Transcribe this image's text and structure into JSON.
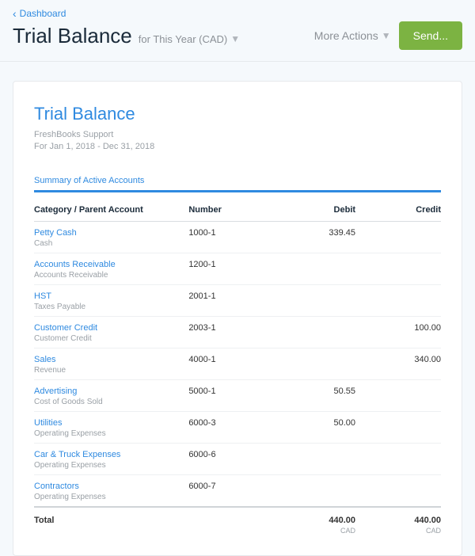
{
  "nav": {
    "back_label": "Dashboard",
    "page_title": "Trial Balance",
    "period_label": "for This Year (CAD)",
    "more_actions_label": "More Actions",
    "send_label": "Send..."
  },
  "report": {
    "title": "Trial Balance",
    "org": "FreshBooks Support",
    "date_range": "For Jan 1, 2018 - Dec 31, 2018",
    "summary_label": "Summary of Active Accounts",
    "columns": {
      "category": "Category / Parent Account",
      "number": "Number",
      "debit": "Debit",
      "credit": "Credit"
    },
    "rows": [
      {
        "name": "Petty Cash",
        "parent": "Cash",
        "number": "1000-1",
        "debit": "339.45",
        "credit": ""
      },
      {
        "name": "Accounts Receivable",
        "parent": "Accounts Receivable",
        "number": "1200-1",
        "debit": "",
        "credit": ""
      },
      {
        "name": "HST",
        "parent": "Taxes Payable",
        "number": "2001-1",
        "debit": "",
        "credit": ""
      },
      {
        "name": "Customer Credit",
        "parent": "Customer Credit",
        "number": "2003-1",
        "debit": "",
        "credit": "100.00"
      },
      {
        "name": "Sales",
        "parent": "Revenue",
        "number": "4000-1",
        "debit": "",
        "credit": "340.00"
      },
      {
        "name": "Advertising",
        "parent": "Cost of Goods Sold",
        "number": "5000-1",
        "debit": "50.55",
        "credit": ""
      },
      {
        "name": "Utilities",
        "parent": "Operating Expenses",
        "number": "6000-3",
        "debit": "50.00",
        "credit": ""
      },
      {
        "name": "Car & Truck Expenses",
        "parent": "Operating Expenses",
        "number": "6000-6",
        "debit": "",
        "credit": ""
      },
      {
        "name": "Contractors",
        "parent": "Operating Expenses",
        "number": "6000-7",
        "debit": "",
        "credit": ""
      }
    ],
    "totals": {
      "label": "Total",
      "debit": "440.00",
      "credit": "440.00",
      "currency": "CAD"
    }
  },
  "styling": {
    "page_bg": "#f5f9fc",
    "card_bg": "#ffffff",
    "border_color": "#e6e9ec",
    "link_color": "#2f8ae0",
    "muted_color": "#9aa0a6",
    "send_btn_bg": "#7cb342",
    "summary_border": "#2f8ae0",
    "row_border": "#eef0f2",
    "header_border": "#d9dde1",
    "total_border": "#d0d4d8"
  }
}
